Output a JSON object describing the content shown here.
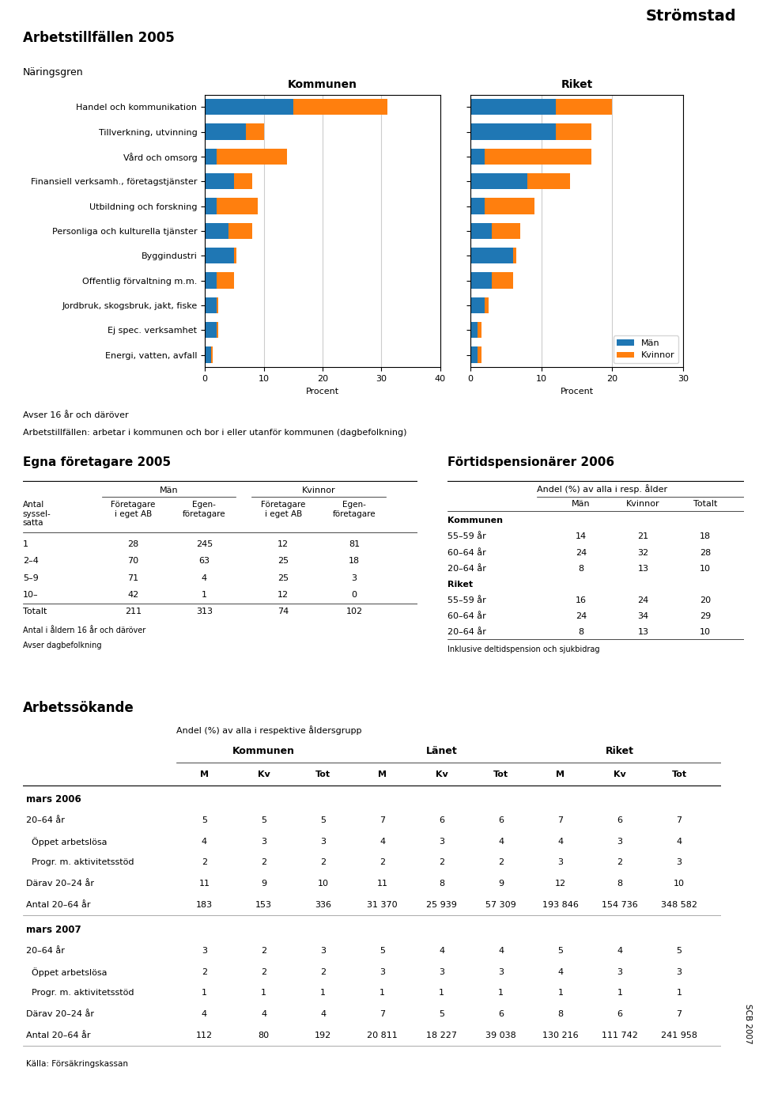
{
  "chart_data": [
    {
      "type": "bar",
      "orientation": "horizontal",
      "stacked": true,
      "title": "Kommunen",
      "annotations": [
        "Strömstad",
        "Arbetstillfällen 2005",
        "Näringsgren",
        "Avser 16 år och däröver",
        "Arbetstillfällen: arbetar i kommunen och bor i eller utanför kommunen (dagbefolkning)"
      ],
      "categories": [
        "Handel och kommunikation",
        "Tillverkning, utvinning",
        "Vård och omsorg",
        "Finansiell verksamh., företagstjänster",
        "Utbildning och forskning",
        "Personliga och kulturella tjänster",
        "Byggindustri",
        "Offentlig förvaltning m.m.",
        "Jordbruk, skogsbruk, jakt, fiske",
        "Ej spec. verksamhet",
        "Energi, vatten, avfall"
      ],
      "series": [
        {
          "name": "Män",
          "values": [
            15,
            7,
            2,
            5,
            2,
            4,
            5,
            2,
            2,
            2,
            1
          ]
        },
        {
          "name": "Kvinnor",
          "values": [
            16,
            3,
            12,
            3,
            7,
            4,
            0.3,
            3,
            0.3,
            0.3,
            0.3
          ]
        }
      ],
      "xlabel": "Procent",
      "xlim": [
        0,
        40
      ],
      "xticks": [
        0,
        10,
        20,
        30,
        40
      ],
      "grid": true
    },
    {
      "type": "bar",
      "orientation": "horizontal",
      "stacked": true,
      "title": "Riket",
      "categories": [
        "Handel och kommunikation",
        "Tillverkning, utvinning",
        "Vård och omsorg",
        "Finansiell verksamh., företagstjänster",
        "Utbildning och forskning",
        "Personliga och kulturella tjänster",
        "Byggindustri",
        "Offentlig förvaltning m.m.",
        "Jordbruk, skogsbruk, jakt, fiske",
        "Ej spec. verksamhet",
        "Energi, vatten, avfall"
      ],
      "series": [
        {
          "name": "Män",
          "values": [
            12,
            12,
            2,
            8,
            2,
            3,
            6,
            3,
            2,
            1,
            1
          ]
        },
        {
          "name": "Kvinnor",
          "values": [
            8,
            5,
            15,
            6,
            7,
            4,
            0.5,
            3,
            0.5,
            0.5,
            0.5
          ]
        }
      ],
      "xlabel": "Procent",
      "xlim": [
        0,
        30
      ],
      "xticks": [
        0,
        10,
        20,
        30
      ],
      "grid": true,
      "legend": "lower right",
      "tick_labels": "x"
    },
    {
      "type": "table",
      "title": "Egna företagare 2005",
      "column_groups": [
        "Män",
        "Kvinnor"
      ],
      "columns": [
        "Antal\nsyssel-\nsatta",
        "Företagare\ni eget AB",
        "Egen-\nföretagare",
        "Företagare\ni eget AB",
        "Egen-\nföretagare"
      ],
      "rows": [
        [
          "1",
          28,
          245,
          12,
          81
        ],
        [
          "2–4",
          70,
          63,
          25,
          18
        ],
        [
          "5–9",
          71,
          4,
          25,
          3
        ],
        [
          "10–",
          42,
          1,
          12,
          0
        ],
        [
          "Totalt",
          211,
          313,
          74,
          102
        ]
      ],
      "notes": [
        "Antal i åldern 16 år och däröver",
        "Avser dagbefolkning"
      ]
    },
    {
      "type": "table",
      "title": "Förtidspensionärer 2006",
      "subtitle": "Andel (%) av alla i resp. ålder",
      "columns": [
        "Män",
        "Kvinnor",
        "Totalt"
      ],
      "groups": [
        {
          "name": "Kommunen",
          "rows": [
            [
              "55–59 år",
              14,
              21,
              18
            ],
            [
              "60–64 år",
              24,
              32,
              28
            ],
            [
              "20–64 år",
              8,
              13,
              10
            ]
          ]
        },
        {
          "name": "Riket",
          "rows": [
            [
              "55–59 år",
              16,
              24,
              20
            ],
            [
              "60–64 år",
              24,
              34,
              29
            ],
            [
              "20–64 år",
              8,
              13,
              10
            ]
          ]
        }
      ],
      "notes": [
        "Inklusive deltidspension och sjukbidrag"
      ]
    },
    {
      "type": "table",
      "title": "Arbetssökande",
      "subtitle": "Andel (%) av alla i respektive åldersgrupp",
      "column_groups": [
        "Kommunen",
        "Länet",
        "Riket"
      ],
      "columns": [
        "M",
        "Kv",
        "Tot",
        "M",
        "Kv",
        "Tot",
        "M",
        "Kv",
        "Tot"
      ],
      "groups": [
        {
          "name": "mars 2006",
          "rows": [
            [
              "20–64 år",
              "5",
              "5",
              "5",
              "7",
              "6",
              "6",
              "7",
              "6",
              "7"
            ],
            [
              "  Öppet arbetslösa",
              "4",
              "3",
              "3",
              "4",
              "3",
              "4",
              "4",
              "3",
              "4"
            ],
            [
              "  Progr. m. aktivitetsstöd",
              "2",
              "2",
              "2",
              "2",
              "2",
              "2",
              "3",
              "2",
              "3"
            ],
            [
              "Därav 20–24 år",
              "11",
              "9",
              "10",
              "11",
              "8",
              "9",
              "12",
              "8",
              "10"
            ],
            [
              "Antal 20–64 år",
              "183",
              "153",
              "336",
              "31 370",
              "25 939",
              "57 309",
              "193 846",
              "154 736",
              "348 582"
            ]
          ]
        },
        {
          "name": "mars 2007",
          "rows": [
            [
              "20–64 år",
              "3",
              "2",
              "3",
              "5",
              "4",
              "4",
              "5",
              "4",
              "5"
            ],
            [
              "  Öppet arbetslösa",
              "2",
              "2",
              "2",
              "3",
              "3",
              "3",
              "4",
              "3",
              "3"
            ],
            [
              "  Progr. m. aktivitetsstöd",
              "1",
              "1",
              "1",
              "1",
              "1",
              "1",
              "1",
              "1",
              "1"
            ],
            [
              "Därav 20–24 år",
              "4",
              "4",
              "4",
              "7",
              "5",
              "6",
              "8",
              "6",
              "7"
            ],
            [
              "Antal 20–64 år",
              "112",
              "80",
              "192",
              "20 811",
              "18 227",
              "39 038",
              "130 216",
              "111 742",
              "241 958"
            ]
          ]
        }
      ],
      "notes": [
        "Källa: Försäkringskassan"
      ],
      "annotations": [
        "SCB 2007"
      ]
    }
  ]
}
